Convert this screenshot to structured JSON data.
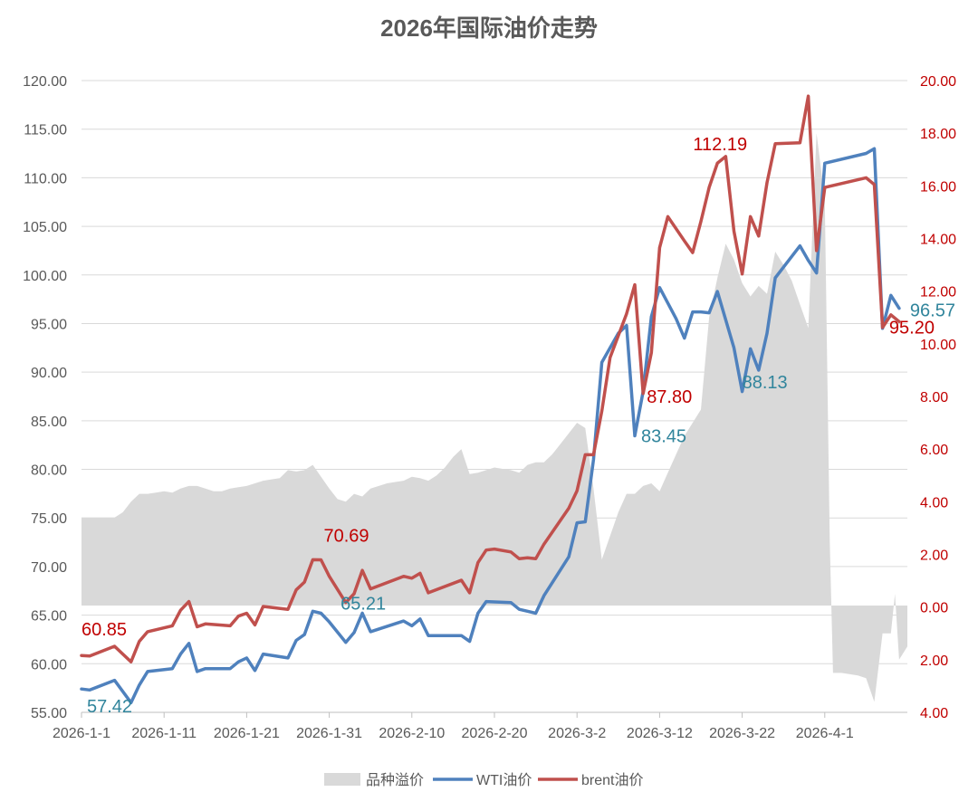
{
  "colors": {
    "wti": "#4f81bd",
    "brent": "#c0504d",
    "spread": "#d9d9d9",
    "wti_label": "#31859c",
    "brent_label": "#c00000",
    "right_axis_text": "#c00000",
    "text": "#595959",
    "grid": "#d9d9d9"
  },
  "chart_data": {
    "type": "line",
    "title": "2026年国际油价走势",
    "legend": {
      "position": "bottom",
      "items": [
        "品种溢价",
        "WTI油价",
        "brent油价"
      ]
    },
    "left_axis": {
      "ylim": [
        55,
        120
      ],
      "ticks": [
        "55.00",
        "60.00",
        "65.00",
        "70.00",
        "75.00",
        "80.00",
        "85.00",
        "90.00",
        "95.00",
        "100.00",
        "105.00",
        "110.00",
        "115.00",
        "120.00"
      ]
    },
    "right_axis": {
      "ylim": [
        -4,
        20
      ],
      "ticks": [
        {
          "value": -4,
          "label": "4.00"
        },
        {
          "value": -2,
          "label": "2.00"
        },
        {
          "value": 0,
          "label": "0.00"
        },
        {
          "value": 2,
          "label": "2.00"
        },
        {
          "value": 4,
          "label": "4.00"
        },
        {
          "value": 6,
          "label": "6.00"
        },
        {
          "value": 8,
          "label": "8.00"
        },
        {
          "value": 10,
          "label": "10.00"
        },
        {
          "value": 12,
          "label": "12.00"
        },
        {
          "value": 14,
          "label": "14.00"
        },
        {
          "value": 16,
          "label": "16.00"
        },
        {
          "value": 18,
          "label": "18.00"
        },
        {
          "value": 20,
          "label": "20.00"
        }
      ]
    },
    "x_axis": {
      "xlim": [
        0,
        100
      ],
      "ticks": [
        {
          "day": 0,
          "label": "2026-1-1"
        },
        {
          "day": 10,
          "label": "2026-1-11"
        },
        {
          "day": 20,
          "label": "2026-1-21"
        },
        {
          "day": 30,
          "label": "2026-1-31"
        },
        {
          "day": 40,
          "label": "2026-2-10"
        },
        {
          "day": 50,
          "label": "2026-2-20"
        },
        {
          "day": 60,
          "label": "2026-3-2"
        },
        {
          "day": 70,
          "label": "2026-3-12"
        },
        {
          "day": 80,
          "label": "2026-3-22"
        },
        {
          "day": 90,
          "label": "2026-4-1"
        }
      ]
    },
    "series": [
      {
        "name": "品种溢价",
        "kind": "area",
        "axis": "right",
        "points": [
          [
            0,
            3.4
          ],
          [
            4,
            3.4
          ],
          [
            5,
            3.6
          ],
          [
            6,
            4.0
          ],
          [
            7,
            4.3
          ],
          [
            8,
            4.3
          ],
          [
            9,
            4.35
          ],
          [
            10,
            4.4
          ],
          [
            11,
            4.35
          ],
          [
            12,
            4.5
          ],
          [
            13,
            4.6
          ],
          [
            14,
            4.6
          ],
          [
            15,
            4.5
          ],
          [
            16,
            4.4
          ],
          [
            17,
            4.4
          ],
          [
            18,
            4.5
          ],
          [
            19,
            4.55
          ],
          [
            20,
            4.6
          ],
          [
            21,
            4.7
          ],
          [
            22,
            4.8
          ],
          [
            23,
            4.85
          ],
          [
            24,
            4.9
          ],
          [
            25,
            5.2
          ],
          [
            26,
            5.15
          ],
          [
            27,
            5.2
          ],
          [
            28,
            5.4
          ],
          [
            30,
            4.5
          ],
          [
            31,
            4.1
          ],
          [
            32,
            4.0
          ],
          [
            33,
            4.3
          ],
          [
            34,
            4.2
          ],
          [
            35,
            4.5
          ],
          [
            36,
            4.6
          ],
          [
            37,
            4.7
          ],
          [
            38,
            4.75
          ],
          [
            39,
            4.8
          ],
          [
            40,
            4.95
          ],
          [
            41,
            4.9
          ],
          [
            42,
            4.8
          ],
          [
            43,
            5.0
          ],
          [
            44,
            5.3
          ],
          [
            45,
            5.7
          ],
          [
            46,
            6.0
          ],
          [
            47,
            5.05
          ],
          [
            48,
            5.1
          ],
          [
            49,
            5.2
          ],
          [
            50,
            5.3
          ],
          [
            51,
            5.25
          ],
          [
            52,
            5.2
          ],
          [
            53,
            5.1
          ],
          [
            54,
            5.4
          ],
          [
            55,
            5.5
          ],
          [
            56,
            5.5
          ],
          [
            57,
            5.8
          ],
          [
            58,
            6.2
          ],
          [
            59,
            6.6
          ],
          [
            60,
            7.0
          ],
          [
            61,
            6.8
          ],
          [
            62,
            4.5
          ],
          [
            63,
            1.8
          ],
          [
            64,
            2.7
          ],
          [
            65,
            3.6
          ],
          [
            66,
            4.3
          ],
          [
            67,
            4.3
          ],
          [
            68,
            4.6
          ],
          [
            69,
            4.7
          ],
          [
            70,
            4.4
          ],
          [
            71,
            5.1
          ],
          [
            72,
            5.8
          ],
          [
            73,
            6.5
          ],
          [
            74,
            7.0
          ],
          [
            75,
            7.5
          ],
          [
            76,
            11.0
          ],
          [
            77,
            12.5
          ],
          [
            78,
            13.8
          ],
          [
            79,
            13.2
          ],
          [
            80,
            12.3
          ],
          [
            81,
            11.8
          ],
          [
            82,
            12.2
          ],
          [
            83,
            11.9
          ],
          [
            84,
            13.5
          ],
          [
            85,
            13.0
          ],
          [
            86,
            12.4
          ],
          [
            87,
            11.5
          ],
          [
            88,
            10.6
          ],
          [
            89,
            18.0
          ],
          [
            90,
            15.5
          ],
          [
            90.6,
            2.5
          ],
          [
            91,
            -2.5
          ],
          [
            92,
            -2.5
          ],
          [
            94,
            -2.6
          ],
          [
            95,
            -2.7
          ],
          [
            96,
            -3.6
          ],
          [
            97,
            -1.0
          ],
          [
            98,
            -1.0
          ],
          [
            98.5,
            0.5
          ],
          [
            99,
            -2.0
          ],
          [
            100,
            -1.5
          ]
        ]
      },
      {
        "name": "WTI油价",
        "kind": "line",
        "axis": "left",
        "points": [
          [
            0,
            57.4
          ],
          [
            1,
            57.3
          ],
          [
            4,
            58.3
          ],
          [
            6,
            56.0
          ],
          [
            7,
            57.8
          ],
          [
            8,
            59.2
          ],
          [
            11,
            59.5
          ],
          [
            12,
            61.0
          ],
          [
            13,
            62.1
          ],
          [
            14,
            59.2
          ],
          [
            15,
            59.5
          ],
          [
            16,
            59.5
          ],
          [
            18,
            59.5
          ],
          [
            19,
            60.2
          ],
          [
            20,
            60.6
          ],
          [
            21,
            59.3
          ],
          [
            22,
            61.0
          ],
          [
            25,
            60.6
          ],
          [
            26,
            62.4
          ],
          [
            27,
            63.0
          ],
          [
            28,
            65.4
          ],
          [
            29,
            65.2
          ],
          [
            30,
            64.3
          ],
          [
            32,
            62.2
          ],
          [
            33,
            63.2
          ],
          [
            34,
            65.21
          ],
          [
            35,
            63.3
          ],
          [
            39,
            64.4
          ],
          [
            40,
            63.9
          ],
          [
            41,
            64.6
          ],
          [
            42,
            62.9
          ],
          [
            44,
            62.9
          ],
          [
            46,
            62.9
          ],
          [
            47,
            62.3
          ],
          [
            48,
            65.2
          ],
          [
            49,
            66.4
          ],
          [
            52,
            66.3
          ],
          [
            53,
            65.6
          ],
          [
            54,
            65.4
          ],
          [
            55,
            65.2
          ],
          [
            56,
            67.0
          ],
          [
            59,
            71.0
          ],
          [
            60,
            74.5
          ],
          [
            61,
            74.6
          ],
          [
            62,
            81.0
          ],
          [
            63,
            91.0
          ],
          [
            65,
            94.0
          ],
          [
            66,
            94.8
          ],
          [
            67,
            83.45
          ],
          [
            68,
            88.0
          ],
          [
            69,
            95.7
          ],
          [
            70,
            98.7
          ],
          [
            72,
            95.5
          ],
          [
            73,
            93.5
          ],
          [
            74,
            96.2
          ],
          [
            75,
            96.2
          ],
          [
            76,
            96.1
          ],
          [
            77,
            98.3
          ],
          [
            79,
            92.5
          ],
          [
            80,
            88.0
          ],
          [
            81,
            92.4
          ],
          [
            82,
            90.2
          ],
          [
            83,
            94.0
          ],
          [
            84,
            99.7
          ],
          [
            85,
            100.8
          ],
          [
            87,
            103.0
          ],
          [
            88,
            101.5
          ],
          [
            89,
            100.2
          ],
          [
            90,
            111.5
          ],
          [
            95,
            112.5
          ],
          [
            96,
            113.0
          ],
          [
            97,
            94.5
          ],
          [
            98,
            97.9
          ],
          [
            99,
            96.57
          ]
        ]
      },
      {
        "name": "brent油价",
        "kind": "line",
        "axis": "left",
        "points": [
          [
            0,
            60.85
          ],
          [
            1,
            60.8
          ],
          [
            4,
            61.8
          ],
          [
            5,
            61.0
          ],
          [
            6,
            60.2
          ],
          [
            7,
            62.3
          ],
          [
            8,
            63.3
          ],
          [
            11,
            63.9
          ],
          [
            12,
            65.5
          ],
          [
            13,
            66.4
          ],
          [
            14,
            63.8
          ],
          [
            15,
            64.1
          ],
          [
            18,
            63.9
          ],
          [
            19,
            64.9
          ],
          [
            20,
            65.2
          ],
          [
            21,
            64.0
          ],
          [
            22,
            65.9
          ],
          [
            25,
            65.6
          ],
          [
            26,
            67.6
          ],
          [
            27,
            68.4
          ],
          [
            28,
            70.7
          ],
          [
            29,
            70.69
          ],
          [
            30,
            69.0
          ],
          [
            32,
            66.3
          ],
          [
            33,
            67.2
          ],
          [
            34,
            69.6
          ],
          [
            35,
            67.7
          ],
          [
            39,
            69.0
          ],
          [
            40,
            68.8
          ],
          [
            41,
            69.3
          ],
          [
            42,
            67.3
          ],
          [
            46,
            68.6
          ],
          [
            47,
            67.3
          ],
          [
            48,
            70.4
          ],
          [
            49,
            71.7
          ],
          [
            50,
            71.8
          ],
          [
            52,
            71.5
          ],
          [
            53,
            70.8
          ],
          [
            54,
            70.9
          ],
          [
            55,
            70.8
          ],
          [
            56,
            72.3
          ],
          [
            59,
            76.0
          ],
          [
            60,
            77.8
          ],
          [
            61,
            81.5
          ],
          [
            62,
            81.5
          ],
          [
            63,
            86.0
          ],
          [
            64,
            91.5
          ],
          [
            66,
            96.0
          ],
          [
            67,
            99.0
          ],
          [
            68,
            87.8
          ],
          [
            69,
            92.0
          ],
          [
            70,
            102.8
          ],
          [
            71,
            106.0
          ],
          [
            73,
            103.5
          ],
          [
            74,
            102.3
          ],
          [
            75,
            105.5
          ],
          [
            76,
            109.0
          ],
          [
            77,
            111.5
          ],
          [
            78,
            112.19
          ],
          [
            79,
            104.5
          ],
          [
            80,
            100.1
          ],
          [
            81,
            106.0
          ],
          [
            82,
            104.0
          ],
          [
            83,
            109.5
          ],
          [
            84,
            113.5
          ],
          [
            87,
            113.6
          ],
          [
            88,
            118.4
          ],
          [
            89,
            102.5
          ],
          [
            90,
            109.0
          ],
          [
            95,
            110.0
          ],
          [
            96,
            109.3
          ],
          [
            97,
            94.6
          ],
          [
            98,
            95.9
          ],
          [
            99,
            95.2
          ]
        ]
      }
    ],
    "annotations": [
      {
        "series": "brent油价",
        "day": 0,
        "value": 60.85,
        "text": "60.85"
      },
      {
        "series": "WTI油价",
        "day": 0,
        "value": 57.42,
        "text": "57.42"
      },
      {
        "series": "brent油价",
        "day": 29,
        "value": 70.69,
        "text": "70.69"
      },
      {
        "series": "WTI油价",
        "day": 34,
        "value": 65.21,
        "text": "65.21"
      },
      {
        "series": "brent油价",
        "day": 68,
        "value": 87.8,
        "text": "87.80"
      },
      {
        "series": "WTI油价",
        "day": 67,
        "value": 83.45,
        "text": "83.45"
      },
      {
        "series": "brent油价",
        "day": 78,
        "value": 112.19,
        "text": "112.19"
      },
      {
        "series": "WTI油价",
        "day": 80,
        "value": 88.13,
        "text": "88.13"
      },
      {
        "series": "WTI油价",
        "day": 99,
        "value": 96.57,
        "text": "96.57"
      },
      {
        "series": "brent油价",
        "day": 99,
        "value": 95.2,
        "text": "95.20"
      }
    ]
  }
}
